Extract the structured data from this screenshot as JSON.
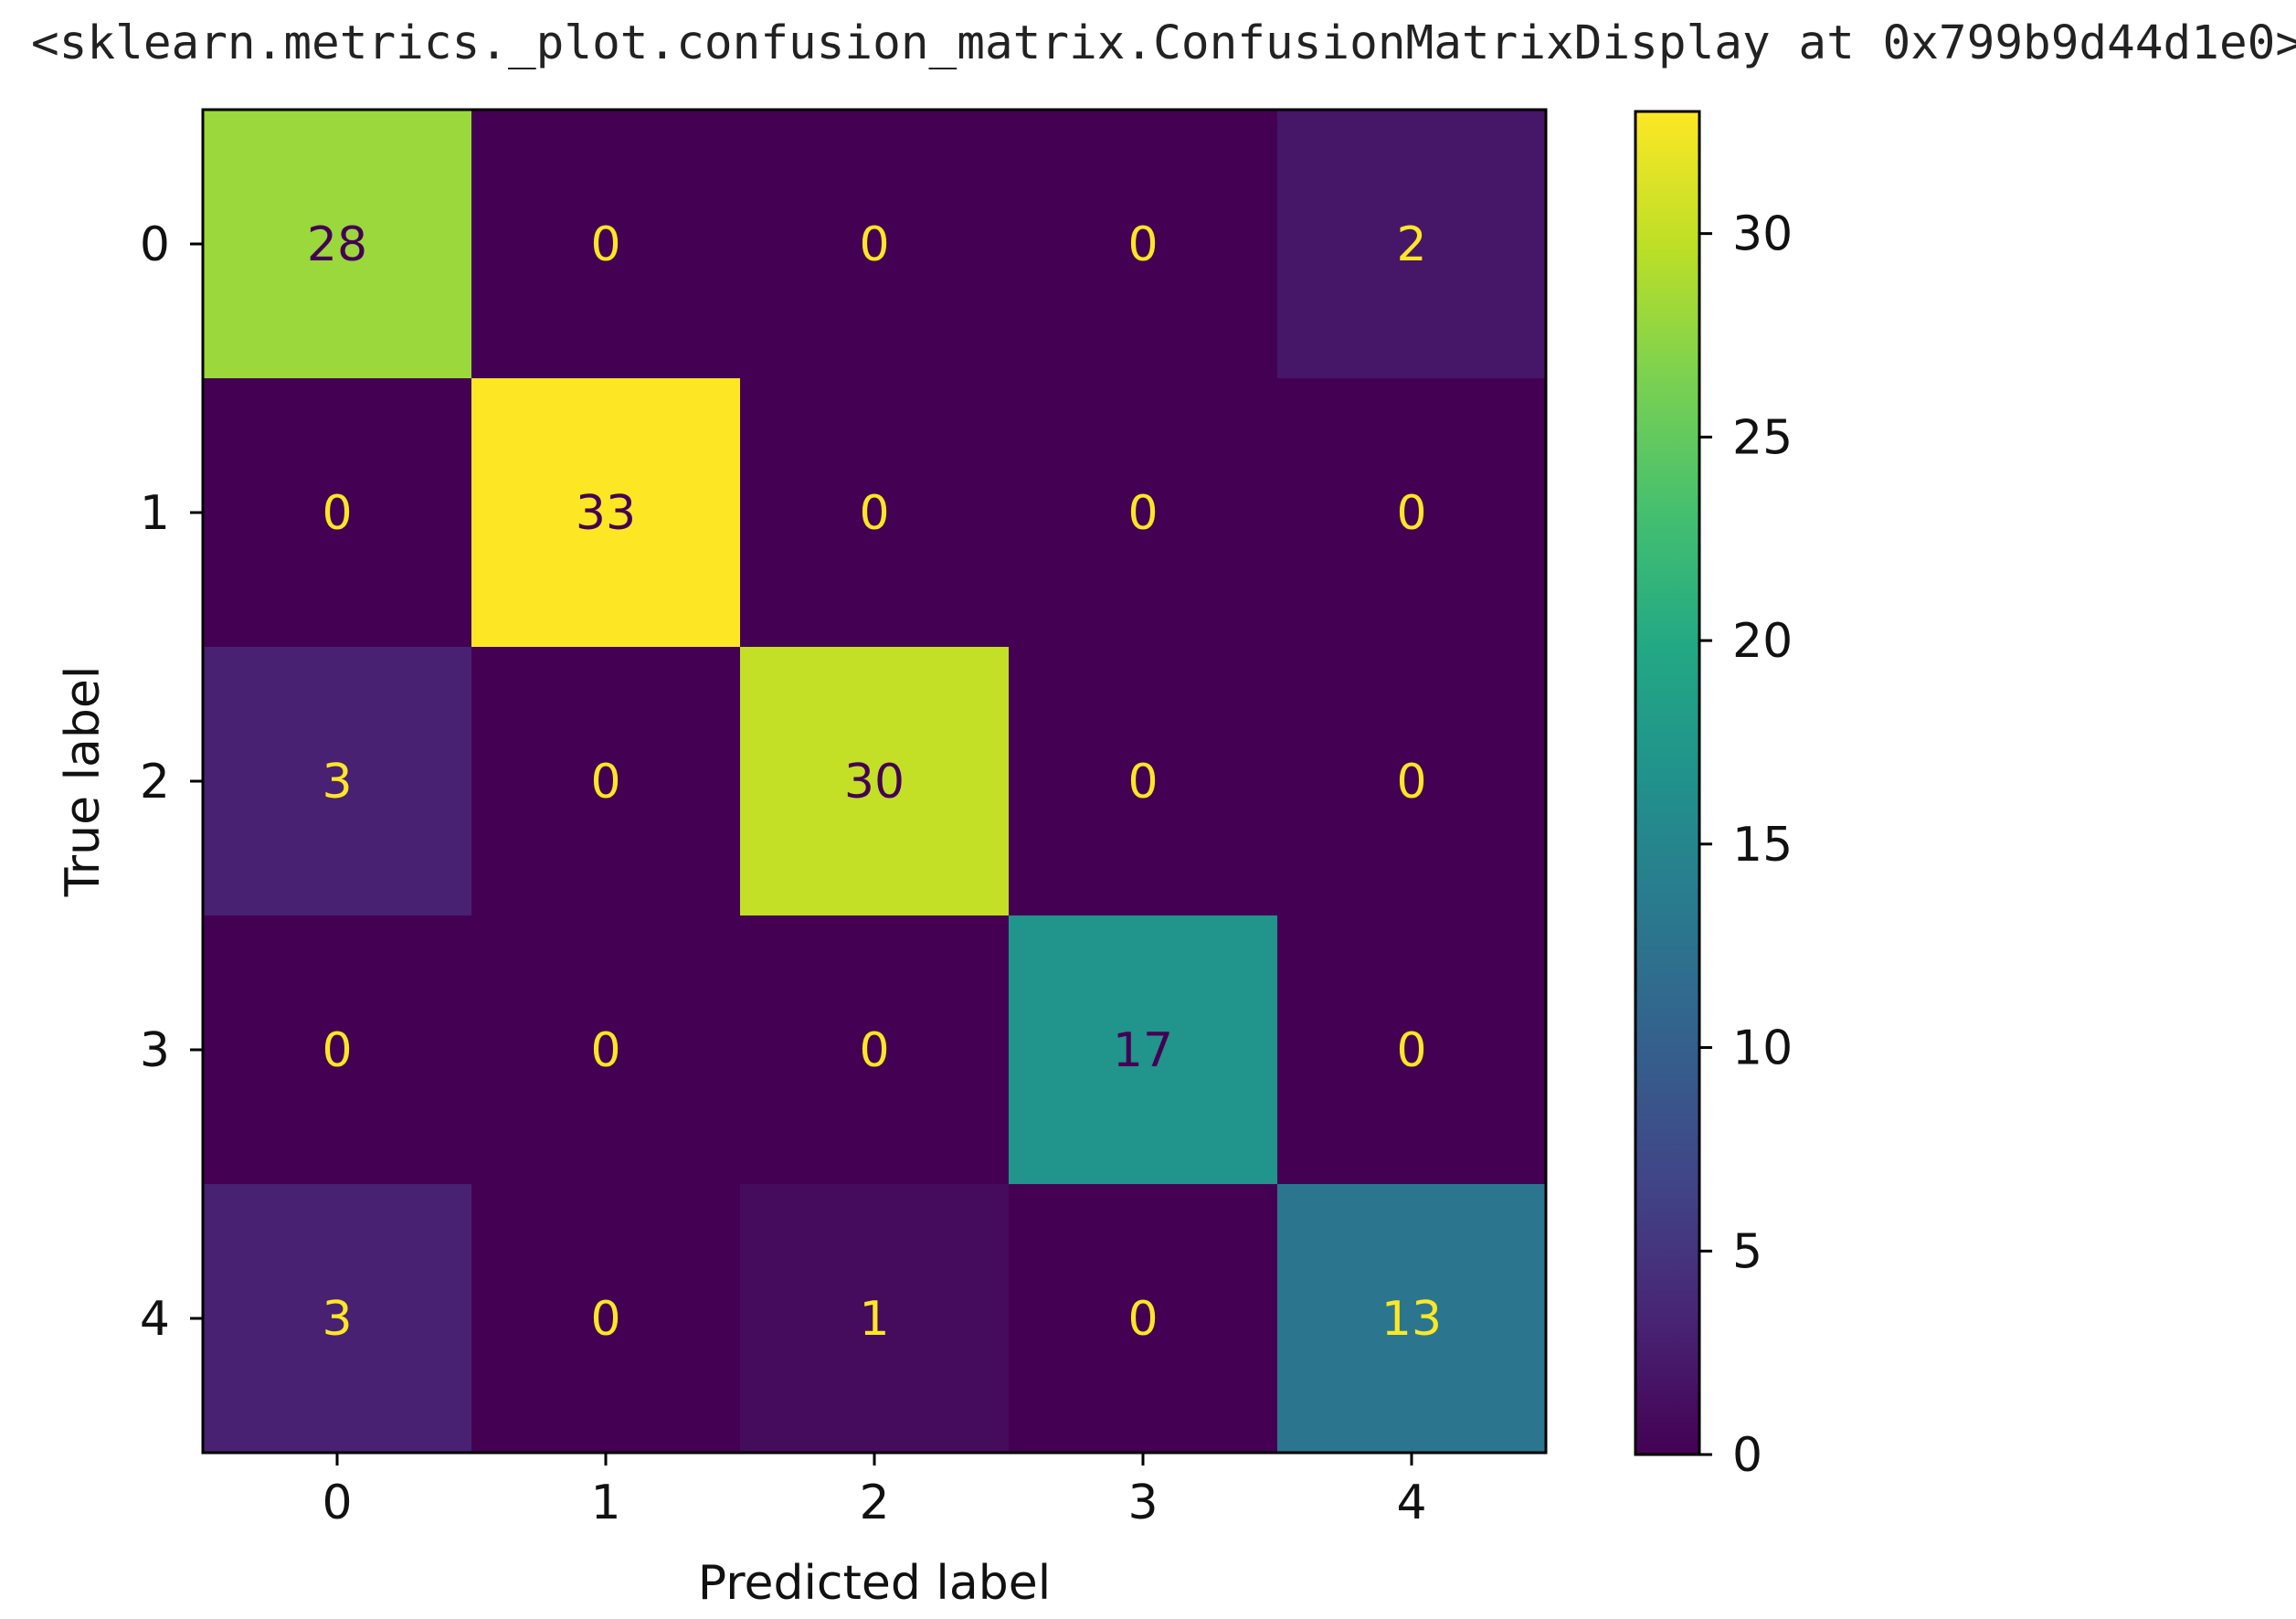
{
  "output": {
    "repr": "<sklearn.metrics._plot.confusion_matrix.ConfusionMatrixDisplay at 0x799b9d44d1e0>"
  },
  "chart_data": {
    "type": "heatmap",
    "colormap": "viridis",
    "xlabel": "Predicted label",
    "ylabel": "True label",
    "x_categories": [
      "0",
      "1",
      "2",
      "3",
      "4"
    ],
    "y_categories": [
      "0",
      "1",
      "2",
      "3",
      "4"
    ],
    "values": [
      [
        28,
        0,
        0,
        0,
        2
      ],
      [
        0,
        33,
        0,
        0,
        0
      ],
      [
        3,
        0,
        30,
        0,
        0
      ],
      [
        0,
        0,
        0,
        17,
        0
      ],
      [
        3,
        0,
        1,
        0,
        13
      ]
    ],
    "colorbar": {
      "range": [
        0,
        33
      ],
      "ticks": [
        0,
        5,
        10,
        15,
        20,
        25,
        30
      ]
    },
    "text_colors": {
      "on_dark": "#fde725",
      "on_light": "#440154"
    }
  }
}
